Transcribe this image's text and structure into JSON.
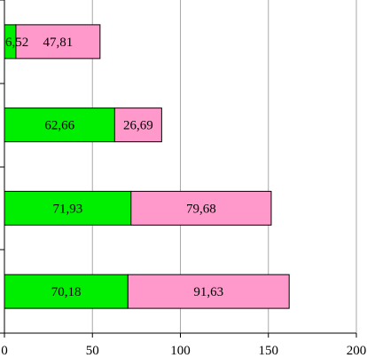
{
  "chart_data": {
    "type": "bar",
    "orientation": "horizontal",
    "stacked": true,
    "xlim": [
      0,
      200
    ],
    "xticks": [
      "0",
      "50",
      "100",
      "150",
      "200"
    ],
    "grid": true,
    "legend": "none",
    "series": [
      {
        "color": "#00ee00",
        "values": [
          6.52,
          62.66,
          71.93,
          70.18
        ],
        "labels": [
          "6,52",
          "62,66",
          "71,93",
          "70,18"
        ]
      },
      {
        "color": "#ff99cc",
        "values": [
          47.81,
          26.69,
          79.68,
          91.63
        ],
        "labels": [
          "47,81",
          "26,69",
          "79,68",
          "91,63"
        ]
      }
    ]
  }
}
